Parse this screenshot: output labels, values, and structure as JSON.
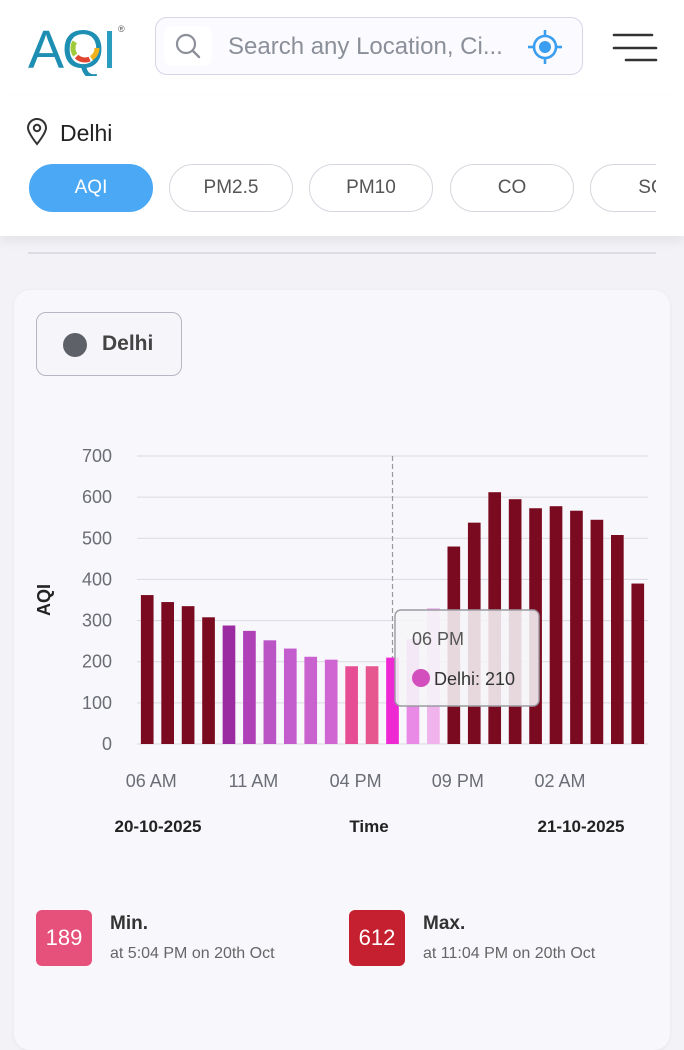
{
  "header": {
    "logo_text": "AQI",
    "logo_reg": "®",
    "search_placeholder": "Search any Location, Ci..."
  },
  "location": {
    "city": "Delhi",
    "tabs": [
      "AQI",
      "PM2.5",
      "PM10",
      "CO",
      "SO"
    ],
    "active_tab": "AQI"
  },
  "legend": {
    "label": "Delhi",
    "color": "#5f6168"
  },
  "chart_data": {
    "type": "bar",
    "ylabel": "AQI",
    "xlabel": "Time",
    "ylim": [
      0,
      700
    ],
    "yticks": [
      0,
      100,
      200,
      300,
      400,
      500,
      600,
      700
    ],
    "xtick_labels": [
      "06 AM",
      "11 AM",
      "04 PM",
      "09 PM",
      "02 AM"
    ],
    "start_date": "20-10-2025",
    "end_date": "21-10-2025",
    "series": [
      {
        "name": "Delhi",
        "values": [
          362,
          345,
          335,
          308,
          288,
          275,
          252,
          232,
          212,
          205,
          189,
          189,
          210,
          255,
          330,
          480,
          538,
          612,
          595,
          573,
          578,
          567,
          545,
          508,
          390
        ],
        "colors": [
          "#7a0a1f",
          "#7a0a1f",
          "#7a0a1f",
          "#7a0a1f",
          "#9a2ba0",
          "#b040b8",
          "#bb55c6",
          "#c35ccc",
          "#c961cf",
          "#d066d2",
          "#e64d95",
          "#e6568f",
          "#ee28d2",
          "#e88ae6",
          "#f0b3ec",
          "#7a0a1f",
          "#7a0a1f",
          "#7a0a1f",
          "#7a0a1f",
          "#7a0a1f",
          "#7a0a1f",
          "#7a0a1f",
          "#7a0a1f",
          "#7a0a1f",
          "#7a0a1f"
        ]
      }
    ],
    "tooltip": {
      "time": "06 PM",
      "text": "Delhi: 210",
      "dot_color": "#d44fbe"
    }
  },
  "stats": {
    "min": {
      "value": "189",
      "title": "Min.",
      "sub": "at 5:04 PM on 20th Oct",
      "color": "#e5517a"
    },
    "max": {
      "value": "612",
      "title": "Max.",
      "sub": "at 11:04 PM on 20th Oct",
      "color": "#c5202f"
    }
  }
}
